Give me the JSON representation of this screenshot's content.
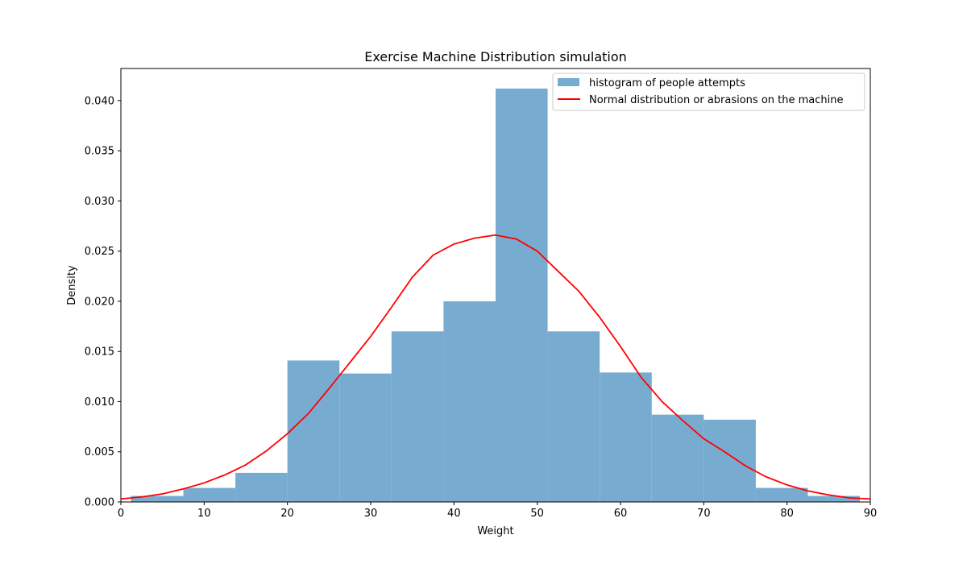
{
  "chart_data": {
    "type": "bar",
    "title": "Exercise Machine Distribution simulation",
    "xlabel": "Weight",
    "ylabel": "Density",
    "xlim": [
      0,
      90
    ],
    "ylim": [
      0,
      0.0432
    ],
    "x_ticks": [
      0,
      10,
      20,
      30,
      40,
      50,
      60,
      70,
      80,
      90
    ],
    "y_ticks": [
      0.0,
      0.005,
      0.01,
      0.015,
      0.02,
      0.025,
      0.03,
      0.035,
      0.04
    ],
    "x_tick_labels": [
      "0",
      "10",
      "20",
      "30",
      "40",
      "50",
      "60",
      "70",
      "80",
      "90"
    ],
    "y_tick_labels": [
      "0.000",
      "0.005",
      "0.010",
      "0.015",
      "0.020",
      "0.025",
      "0.030",
      "0.035",
      "0.040"
    ],
    "legend_position": "top-right",
    "colors": {
      "bars": "#77acd0",
      "curve": "#ff0000"
    },
    "series": [
      {
        "name": "histogram of people attempts",
        "type": "histogram",
        "bins": [
          {
            "x0": 1.2,
            "x1": 7.5,
            "value": 0.0006
          },
          {
            "x0": 7.5,
            "x1": 13.75,
            "value": 0.0014
          },
          {
            "x0": 13.75,
            "x1": 20.0,
            "value": 0.0029
          },
          {
            "x0": 20.0,
            "x1": 26.25,
            "value": 0.0141
          },
          {
            "x0": 26.25,
            "x1": 32.5,
            "value": 0.0128
          },
          {
            "x0": 32.5,
            "x1": 38.75,
            "value": 0.017
          },
          {
            "x0": 38.75,
            "x1": 45.0,
            "value": 0.02
          },
          {
            "x0": 45.0,
            "x1": 51.25,
            "value": 0.0412
          },
          {
            "x0": 51.25,
            "x1": 57.5,
            "value": 0.017
          },
          {
            "x0": 57.5,
            "x1": 63.75,
            "value": 0.0129
          },
          {
            "x0": 63.75,
            "x1": 70.0,
            "value": 0.0087
          },
          {
            "x0": 70.0,
            "x1": 76.25,
            "value": 0.0082
          },
          {
            "x0": 76.25,
            "x1": 82.5,
            "value": 0.0014
          },
          {
            "x0": 82.5,
            "x1": 88.75,
            "value": 0.0006
          }
        ]
      },
      {
        "name": "Normal distribution or abrasions on the machine",
        "type": "line",
        "x": [
          0,
          2.5,
          5,
          7.5,
          10,
          12.5,
          15,
          17.5,
          20,
          22.5,
          25,
          27.5,
          30,
          32.5,
          35,
          37.5,
          40,
          42.5,
          45,
          47.5,
          50,
          52.5,
          55,
          57.5,
          60,
          62.5,
          65,
          67.5,
          70,
          72.5,
          75,
          77.5,
          80,
          82.5,
          85,
          87.5,
          90
        ],
        "y": [
          0.0003,
          0.0005,
          0.0008,
          0.0013,
          0.0019,
          0.0027,
          0.0037,
          0.0051,
          0.0068,
          0.0088,
          0.0113,
          0.0139,
          0.0165,
          0.0194,
          0.0224,
          0.0246,
          0.0257,
          0.0263,
          0.0266,
          0.0262,
          0.025,
          0.023,
          0.021,
          0.0184,
          0.0155,
          0.0124,
          0.01,
          0.0081,
          0.0063,
          0.005,
          0.0036,
          0.0025,
          0.0017,
          0.0011,
          0.0007,
          0.0004,
          0.0003
        ]
      }
    ]
  }
}
